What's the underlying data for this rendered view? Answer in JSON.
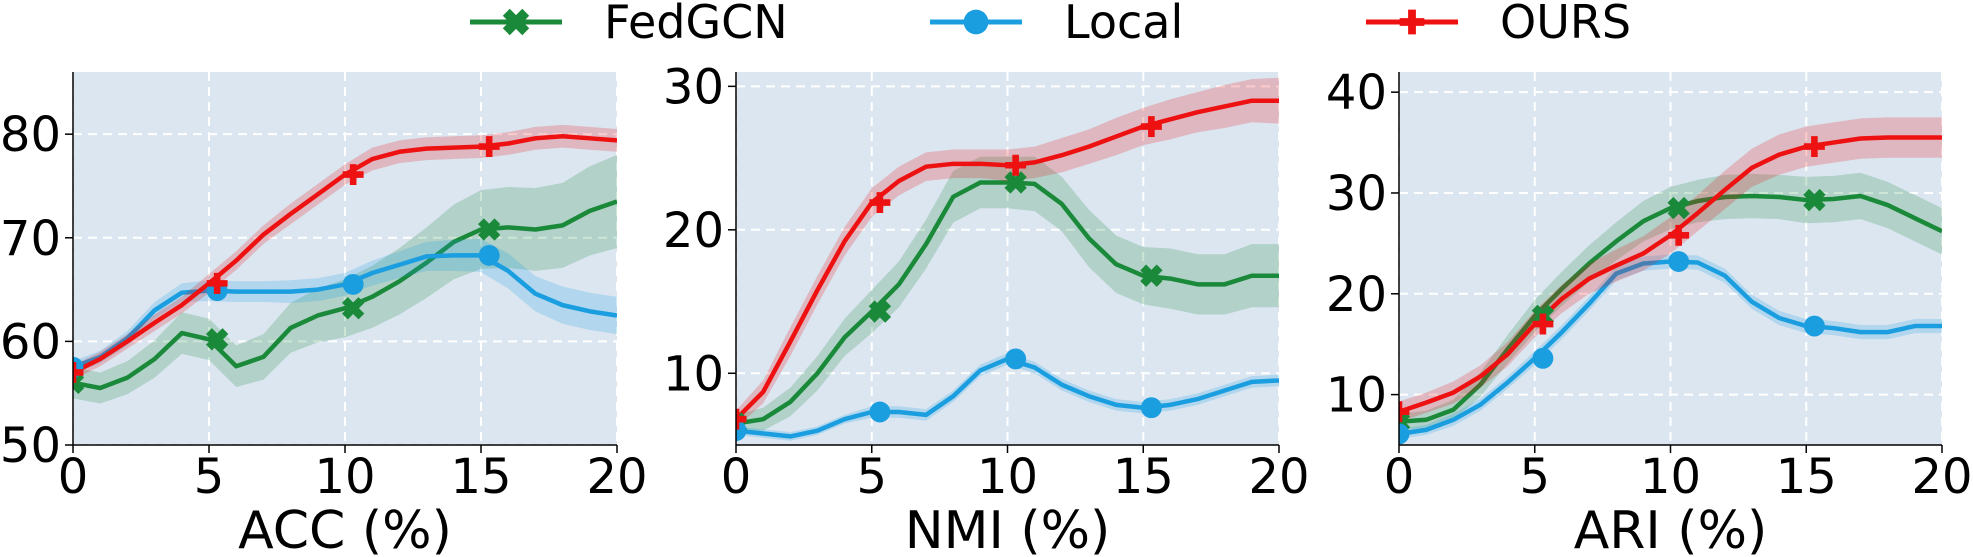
{
  "legend": [
    {
      "name": "FedGCN",
      "color": "#1a8a3a",
      "marker": "x-marker-icon"
    },
    {
      "name": "Local",
      "color": "#1a9ee0",
      "marker": "circle-marker-icon"
    },
    {
      "name": "OURS",
      "color": "#ee1111",
      "marker": "plus-marker-icon"
    }
  ],
  "chart_data": [
    {
      "type": "line",
      "xlabel": "ACC (%)",
      "ylabel": "",
      "xlim": [
        0,
        20
      ],
      "ylim": [
        50,
        86
      ],
      "xticks": [
        0,
        5,
        10,
        15,
        20
      ],
      "yticks": [
        50,
        60,
        70,
        80
      ],
      "grid": true,
      "x": [
        0,
        1,
        2,
        3,
        4,
        5,
        6,
        7,
        8,
        9,
        10,
        11,
        12,
        13,
        14,
        15,
        16,
        17,
        18,
        19,
        20
      ],
      "markers_at": [
        0,
        5,
        10,
        15
      ],
      "series": [
        {
          "name": "FedGCN",
          "values": [
            56,
            55.5,
            56.5,
            58.3,
            60.8,
            60.2,
            57.6,
            58.5,
            61.3,
            62.5,
            63.2,
            64.3,
            65.8,
            67.6,
            69.6,
            70.8,
            71.0,
            70.8,
            71.2,
            72.6,
            73.5
          ],
          "band": [
            1.5,
            1.5,
            1.6,
            1.8,
            2.0,
            2.0,
            2.0,
            2.2,
            2.4,
            2.6,
            2.8,
            3.0,
            3.2,
            3.4,
            3.6,
            3.8,
            3.9,
            4.0,
            4.1,
            4.3,
            4.5
          ]
        },
        {
          "name": "Local",
          "values": [
            57.5,
            58.5,
            60.3,
            63.0,
            64.7,
            64.9,
            64.8,
            64.8,
            64.8,
            65.0,
            65.5,
            66.6,
            67.4,
            68.2,
            68.3,
            68.3,
            66.8,
            64.6,
            63.5,
            62.9,
            62.5
          ],
          "band": [
            0.6,
            0.6,
            0.7,
            0.8,
            0.9,
            1.0,
            1.0,
            1.0,
            1.1,
            1.1,
            1.1,
            1.2,
            1.3,
            1.4,
            1.5,
            1.6,
            1.7,
            1.7,
            1.8,
            1.8,
            1.8
          ]
        },
        {
          "name": "OURS",
          "values": [
            57,
            58.3,
            60.0,
            61.8,
            63.5,
            65.6,
            67.8,
            70.3,
            72.3,
            74.2,
            76.1,
            77.6,
            78.3,
            78.6,
            78.7,
            78.8,
            79.1,
            79.6,
            79.8,
            79.6,
            79.4
          ],
          "band": [
            0.7,
            0.7,
            0.7,
            0.8,
            0.8,
            0.9,
            0.9,
            0.9,
            1.0,
            1.0,
            1.0,
            1.1,
            1.1,
            1.1,
            1.1,
            1.1,
            1.1,
            1.1,
            1.1,
            1.1,
            1.1
          ]
        }
      ]
    },
    {
      "type": "line",
      "xlabel": "NMI (%)",
      "ylabel": "",
      "xlim": [
        0,
        20
      ],
      "ylim": [
        5,
        31
      ],
      "xticks": [
        0,
        5,
        10,
        15,
        20
      ],
      "yticks": [
        10,
        20,
        30
      ],
      "grid": true,
      "x": [
        0,
        1,
        2,
        3,
        4,
        5,
        6,
        7,
        8,
        9,
        10,
        11,
        12,
        13,
        14,
        15,
        16,
        17,
        18,
        19,
        20
      ],
      "markers_at": [
        0,
        5,
        10,
        15
      ],
      "series": [
        {
          "name": "FedGCN",
          "values": [
            6.5,
            6.8,
            8.0,
            10.0,
            12.5,
            14.3,
            16.2,
            19.0,
            22.3,
            23.3,
            23.3,
            23.2,
            21.8,
            19.4,
            17.6,
            16.8,
            16.6,
            16.2,
            16.2,
            16.8,
            16.8
          ],
          "band": [
            0.6,
            0.8,
            1.0,
            1.2,
            1.3,
            1.5,
            1.6,
            1.7,
            1.8,
            1.8,
            1.8,
            1.9,
            1.9,
            2.0,
            2.0,
            2.0,
            2.1,
            2.1,
            2.1,
            2.2,
            2.2
          ]
        },
        {
          "name": "Local",
          "values": [
            6.0,
            5.8,
            5.6,
            6.0,
            6.8,
            7.3,
            7.3,
            7.1,
            8.4,
            10.2,
            11.0,
            10.4,
            9.2,
            8.4,
            7.8,
            7.6,
            7.8,
            8.2,
            8.8,
            9.4,
            9.5
          ],
          "band": [
            0.3,
            0.3,
            0.3,
            0.3,
            0.3,
            0.4,
            0.4,
            0.4,
            0.4,
            0.4,
            0.4,
            0.4,
            0.4,
            0.4,
            0.4,
            0.4,
            0.4,
            0.4,
            0.4,
            0.4,
            0.4
          ]
        },
        {
          "name": "OURS",
          "values": [
            6.8,
            8.7,
            12.2,
            15.8,
            19.2,
            21.9,
            23.4,
            24.4,
            24.6,
            24.6,
            24.5,
            24.7,
            25.2,
            25.8,
            26.5,
            27.2,
            27.7,
            28.2,
            28.6,
            29.0,
            29.0
          ],
          "band": [
            0.6,
            0.8,
            1.0,
            1.0,
            1.0,
            1.0,
            1.0,
            1.0,
            1.0,
            1.0,
            1.1,
            1.1,
            1.2,
            1.2,
            1.3,
            1.3,
            1.4,
            1.4,
            1.5,
            1.5,
            1.6
          ]
        }
      ]
    },
    {
      "type": "line",
      "xlabel": "ARI (%)",
      "ylabel": "",
      "xlim": [
        0,
        20
      ],
      "ylim": [
        5,
        42
      ],
      "xticks": [
        0,
        5,
        10,
        15,
        20
      ],
      "yticks": [
        10,
        20,
        30,
        40
      ],
      "grid": true,
      "x": [
        0,
        1,
        2,
        3,
        4,
        5,
        6,
        7,
        8,
        9,
        10,
        11,
        12,
        13,
        14,
        15,
        16,
        17,
        18,
        19,
        20
      ],
      "markers_at": [
        0,
        5,
        10,
        15
      ],
      "series": [
        {
          "name": "FedGCN",
          "values": [
            7.3,
            7.5,
            8.5,
            11.0,
            14.5,
            17.8,
            20.5,
            23.0,
            25.2,
            27.2,
            28.5,
            29.2,
            29.6,
            29.7,
            29.6,
            29.3,
            29.4,
            29.7,
            28.8,
            27.5,
            26.2
          ],
          "band": [
            0.8,
            0.9,
            1.0,
            1.2,
            1.4,
            1.6,
            1.7,
            1.8,
            1.9,
            2.0,
            2.1,
            2.1,
            2.2,
            2.2,
            2.2,
            2.3,
            2.3,
            2.3,
            2.3,
            2.3,
            2.3
          ]
        },
        {
          "name": "Local",
          "values": [
            6.1,
            6.5,
            7.5,
            9.0,
            11.2,
            13.6,
            16.2,
            19.0,
            22.0,
            23.0,
            23.2,
            23.1,
            21.8,
            19.2,
            17.6,
            16.8,
            16.6,
            16.2,
            16.2,
            16.8,
            16.8
          ],
          "band": [
            0.5,
            0.5,
            0.6,
            0.6,
            0.6,
            0.7,
            0.7,
            0.7,
            0.7,
            0.7,
            0.7,
            0.7,
            0.7,
            0.7,
            0.7,
            0.7,
            0.7,
            0.7,
            0.7,
            0.7,
            0.7
          ]
        },
        {
          "name": "OURS",
          "values": [
            8.3,
            9.2,
            10.2,
            11.8,
            14.0,
            17.0,
            19.5,
            21.5,
            22.8,
            24.0,
            25.8,
            28.0,
            30.3,
            32.5,
            33.8,
            34.6,
            35.0,
            35.4,
            35.5,
            35.5,
            35.5
          ],
          "band": [
            1.0,
            1.0,
            1.1,
            1.1,
            1.2,
            1.3,
            1.4,
            1.5,
            1.6,
            1.7,
            1.8,
            1.8,
            1.9,
            1.9,
            2.0,
            2.0,
            2.0,
            2.0,
            2.0,
            2.0,
            2.0
          ]
        }
      ]
    }
  ]
}
